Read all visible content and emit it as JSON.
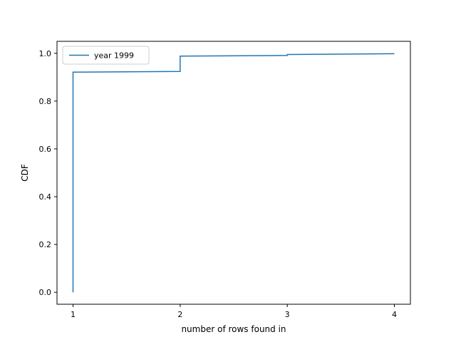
{
  "chart_data": {
    "type": "line",
    "title": "",
    "xlabel": "number of rows found in",
    "ylabel": "CDF",
    "xlim": [
      0.85,
      4.15
    ],
    "ylim": [
      -0.05,
      1.05
    ],
    "xticks": [
      1,
      2,
      3,
      4
    ],
    "xtick_labels": [
      "1",
      "2",
      "3",
      "4"
    ],
    "yticks": [
      0.0,
      0.2,
      0.4,
      0.6,
      0.8,
      1.0
    ],
    "ytick_labels": [
      "0.0",
      "0.2",
      "0.4",
      "0.6",
      "0.8",
      "1.0"
    ],
    "grid": false,
    "legend_position": "upper-left",
    "series": [
      {
        "name": "year 1999",
        "color": "#1f77b4",
        "x": [
          1,
          1,
          1,
          2,
          2,
          3,
          3,
          4
        ],
        "y": [
          0.0,
          0.921,
          0.921,
          0.924,
          0.988,
          0.991,
          0.995,
          0.998
        ]
      }
    ]
  }
}
